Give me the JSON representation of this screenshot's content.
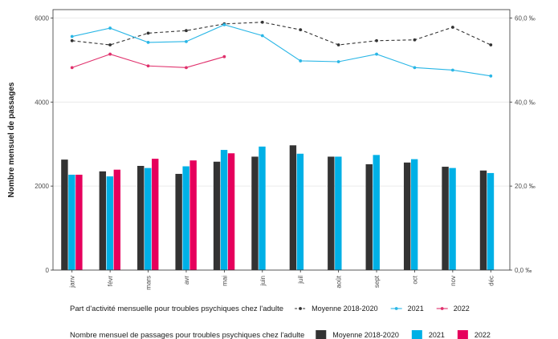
{
  "chart_data": {
    "type": "bar",
    "ylabel": "Nombre mensuel de passages",
    "categories": [
      "janv",
      "févr",
      "mars",
      "avr",
      "mai",
      "juin",
      "juil",
      "août",
      "sept",
      "oct",
      "nov",
      "déc"
    ],
    "ylim": [
      0,
      6200
    ],
    "yticks": [
      0,
      2000,
      4000,
      6000
    ],
    "y2ticks": [
      0,
      20,
      40,
      60
    ],
    "y2tick_labels": [
      "0,0 ‰",
      "20,0 ‰",
      "40,0 ‰",
      "60,0 ‰"
    ],
    "y2lim": [
      0,
      62
    ],
    "bar_series": [
      {
        "name": "Moyenne 2018-2020",
        "color": "#333333",
        "values": [
          2630,
          2350,
          2480,
          2290,
          2580,
          2700,
          2970,
          2700,
          2520,
          2560,
          2460,
          2370
        ]
      },
      {
        "name": "2021",
        "color": "#00b0e6",
        "values": [
          2270,
          2230,
          2430,
          2470,
          2860,
          2940,
          2770,
          2700,
          2740,
          2640,
          2430,
          2310
        ]
      },
      {
        "name": "2022",
        "color": "#e6005c",
        "values": [
          2270,
          2390,
          2650,
          2610,
          2780,
          null,
          null,
          null,
          null,
          null,
          null,
          null
        ]
      }
    ],
    "line_series": [
      {
        "name": "Moyenne 2018-2020",
        "color": "#333333",
        "dash": true,
        "values": [
          54.6,
          53.6,
          56.4,
          57.0,
          58.6,
          59.0,
          57.2,
          53.6,
          54.6,
          54.8,
          57.8,
          53.6
        ]
      },
      {
        "name": "2021",
        "color": "#29b6e6",
        "dash": false,
        "values": [
          55.6,
          57.6,
          54.2,
          54.4,
          58.4,
          55.8,
          49.8,
          49.6,
          51.4,
          48.2,
          47.6,
          46.2
        ]
      },
      {
        "name": "2022",
        "color": "#e0306c",
        "dash": false,
        "values": [
          48.2,
          51.4,
          48.6,
          48.2,
          50.8,
          null,
          null,
          null,
          null,
          null,
          null,
          null
        ]
      }
    ],
    "legend_line_title": "Part d'activité mensuelle pour troubles psychiques chez l'adulte",
    "legend_bar_title": "Nombre mensuel de passages pour troubles psychiques chez l'adulte",
    "legend_position": "bottom"
  }
}
